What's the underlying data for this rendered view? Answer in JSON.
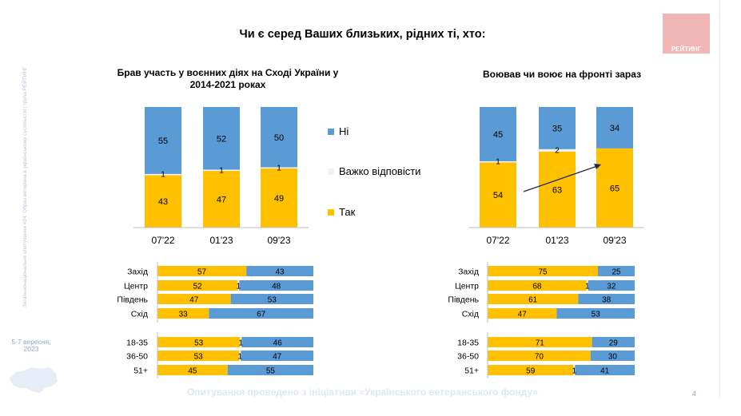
{
  "sidebar": {
    "vertical_text": "Загальнонаціональне опитування #24: Образ ветерана в українському суспільстві | група РЕЙТИНГ",
    "date": "5-7 вересня, 2023"
  },
  "title": "Чи є серед Ваших близьких, рідних ті, хто:",
  "logo": {
    "text": "РЕЙТИНГ",
    "color": "#f2b5b5"
  },
  "footer": "Опитування проведено з ініціативи «Українського ветеранського фонду»",
  "page_number": "4",
  "colors": {
    "yes": "#FFC000",
    "no": "#5B9BD5",
    "hard": "#F2F2F2"
  },
  "legend": [
    {
      "key": "no",
      "label": "Ні"
    },
    {
      "key": "hard",
      "label": "Важко відповісти"
    },
    {
      "key": "yes",
      "label": "Так"
    }
  ],
  "chart_data": [
    {
      "id": "left-columns",
      "type": "bar",
      "stacked": true,
      "title": "Брав участь у воєнних діях на Сході України у 2014-2021 роках",
      "categories": [
        "07'22",
        "01'23",
        "09'23"
      ],
      "series": [
        {
          "name": "Так",
          "values": [
            43,
            47,
            49
          ]
        },
        {
          "name": "Важко відповісти",
          "values": [
            1,
            1,
            1
          ]
        },
        {
          "name": "Ні",
          "values": [
            55,
            52,
            50
          ]
        }
      ],
      "ylim": [
        0,
        100
      ]
    },
    {
      "id": "right-columns",
      "type": "bar",
      "stacked": true,
      "title": "Воював чи воює на фронті зараз",
      "categories": [
        "07'22",
        "01'23",
        "09'23"
      ],
      "series": [
        {
          "name": "Так",
          "values": [
            54,
            63,
            65
          ]
        },
        {
          "name": "Важко відповісти",
          "values": [
            1,
            2,
            null
          ]
        },
        {
          "name": "Ні",
          "values": [
            45,
            35,
            34
          ]
        }
      ],
      "ylim": [
        0,
        100
      ],
      "annotation": "trend arrow rising from 07'22 to 09'23"
    },
    {
      "id": "left-region",
      "type": "bar",
      "orientation": "horizontal",
      "stacked": true,
      "categories": [
        "Захід",
        "Центр",
        "Південь",
        "Схід"
      ],
      "series": [
        {
          "name": "Так",
          "values": [
            57,
            52,
            47,
            33
          ]
        },
        {
          "name": "Важко відповісти",
          "values": [
            null,
            1,
            null,
            null
          ]
        },
        {
          "name": "Ні",
          "values": [
            43,
            48,
            53,
            67
          ]
        }
      ]
    },
    {
      "id": "left-age",
      "type": "bar",
      "orientation": "horizontal",
      "stacked": true,
      "categories": [
        "18-35",
        "36-50",
        "51+"
      ],
      "series": [
        {
          "name": "Так",
          "values": [
            53,
            53,
            45
          ]
        },
        {
          "name": "Важко відповісти",
          "values": [
            1,
            1,
            null
          ]
        },
        {
          "name": "Ні",
          "values": [
            46,
            47,
            55
          ]
        }
      ]
    },
    {
      "id": "right-region",
      "type": "bar",
      "orientation": "horizontal",
      "stacked": true,
      "categories": [
        "Захід",
        "Центр",
        "Південь",
        "Схід"
      ],
      "series": [
        {
          "name": "Так",
          "values": [
            75,
            68,
            61,
            47
          ]
        },
        {
          "name": "Важко відповісти",
          "values": [
            null,
            1,
            null,
            null
          ]
        },
        {
          "name": "Ні",
          "values": [
            25,
            32,
            38,
            53
          ]
        }
      ]
    },
    {
      "id": "right-age",
      "type": "bar",
      "orientation": "horizontal",
      "stacked": true,
      "categories": [
        "18-35",
        "36-50",
        "51+"
      ],
      "series": [
        {
          "name": "Так",
          "values": [
            71,
            70,
            59
          ]
        },
        {
          "name": "Важко відповісти",
          "values": [
            null,
            null,
            1
          ]
        },
        {
          "name": "Ні",
          "values": [
            29,
            30,
            41
          ]
        }
      ]
    }
  ]
}
